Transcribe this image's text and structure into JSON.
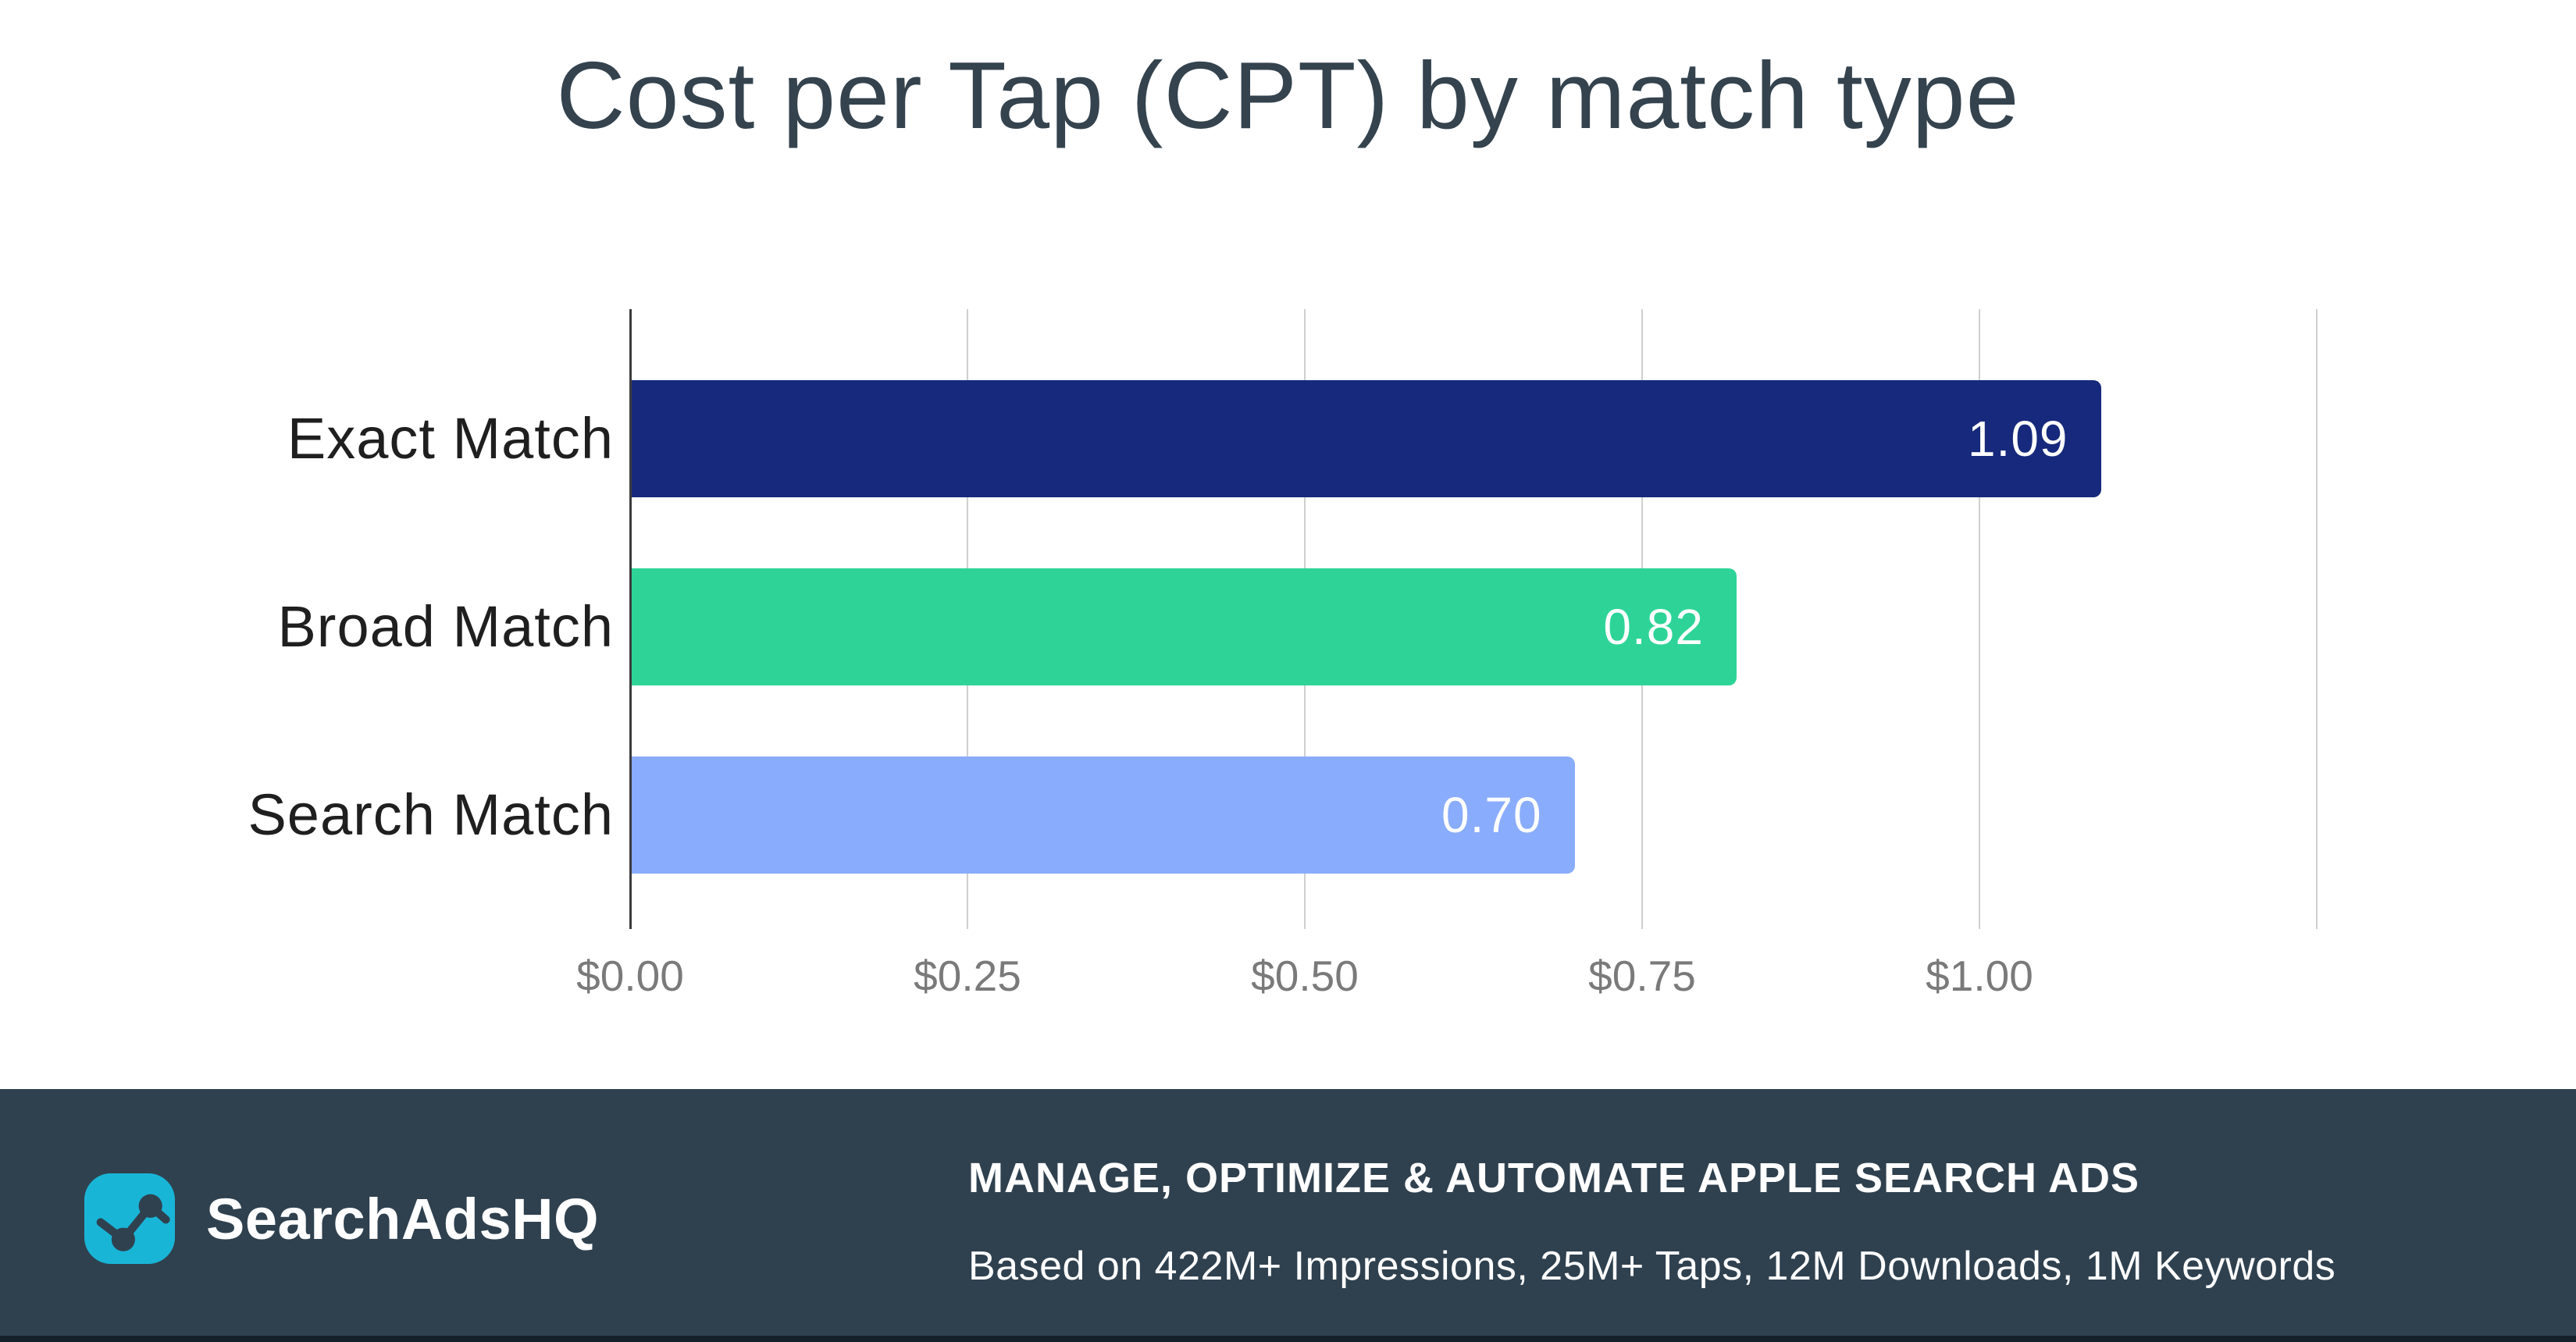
{
  "title": {
    "text": "Cost per Tap (CPT) by match type",
    "color": "#34434E"
  },
  "chart_data": {
    "type": "bar",
    "orientation": "horizontal",
    "title": "Cost per Tap (CPT) by match type",
    "categories": [
      "Exact Match",
      "Broad Match",
      "Search Match"
    ],
    "values": [
      1.09,
      0.82,
      0.7
    ],
    "value_labels": [
      "1.09",
      "0.82",
      "0.70"
    ],
    "bar_colors": [
      "#16297C",
      "#2ED497",
      "#8AACFC"
    ],
    "value_label_color": "#FFFFFF",
    "xlabel": "",
    "ylabel": "",
    "xlim": [
      0,
      1.25
    ],
    "xticks": [
      0,
      0.25,
      0.5,
      0.75,
      1.0,
      1.25
    ],
    "xtick_labels": [
      "$0.00",
      "$0.25",
      "$0.50",
      "$0.75",
      "$1.00",
      ""
    ],
    "grid": true,
    "legend": false,
    "gridline_color": "#CFCFCF",
    "axis_line_color": "#3C3C3C",
    "category_label_color": "#1F1F1F",
    "tick_label_color": "#7A7A7A"
  },
  "footer": {
    "background": "#2F414F",
    "brand": {
      "name": "SearchAdsHQ",
      "icon": "line-chart-icon",
      "icon_bg": "#19B5D7"
    },
    "headline": "MANAGE, OPTIMIZE & AUTOMATE APPLE SEARCH ADS",
    "subline": "Based on 422M+ Impressions, 25M+ Taps, 12M Downloads, 1M Keywords"
  }
}
